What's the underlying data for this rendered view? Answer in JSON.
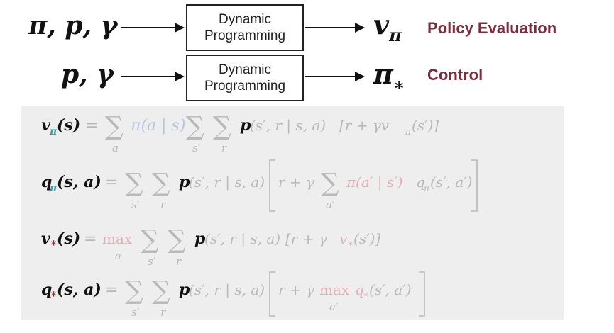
{
  "colors": {
    "label": "#7b2d3e",
    "box_border": "#222222",
    "panel_bg": "#eeeeee",
    "teal": "#3a9aa6",
    "crimson": "#9a2b3c",
    "faded": "#b9b9b9",
    "faded_blue": "#b8c6dc",
    "faded_red": "#e2b0b6",
    "strong": "#111111"
  },
  "row1": {
    "inputs": "π, p, γ",
    "box_line1": "Dynamic",
    "box_line2": "Programming",
    "output_main": "v",
    "output_sub": "π",
    "label": "Policy Evaluation"
  },
  "row2": {
    "inputs": "p, γ",
    "box_line1": "Dynamic",
    "box_line2": "Programming",
    "output_main": "π",
    "output_sub": "∗",
    "label": "Control"
  },
  "equations": {
    "eq1": {
      "lhs_v": "v",
      "lhs_sub": "π",
      "lhs_arg": "(s)",
      "equals": "=",
      "sum1": "∑",
      "sum1_sub": "a",
      "policy": "π(a | s)",
      "sum2": "∑",
      "sum2_sub": "s′",
      "sum3": "∑",
      "sum3_sub": "r",
      "p": "p",
      "p_args": "(s′, r | s, a)",
      "bracket_body": "[r + γv",
      "bracket_sub": "π",
      "bracket_tail": "(s′)]"
    },
    "eq2": {
      "lhs_q": "q",
      "lhs_sub": "π",
      "lhs_arg": "(s, a)",
      "equals": "=",
      "sum1": "∑",
      "sum1_sub": "s′",
      "sum2": "∑",
      "sum2_sub": "r",
      "p": "p",
      "p_args": "(s′, r | s, a)",
      "body_start": "r + γ",
      "sum3": "∑",
      "sum3_sub": "a′",
      "policy": "π(a′ | s′)",
      "q_tail": "q",
      "q_tail_sub": "π",
      "q_tail_args": "(s′, a′)"
    },
    "eq3": {
      "lhs_v": "v",
      "lhs_sub": "∗",
      "lhs_arg": "(s)",
      "equals": "=",
      "max": "max",
      "max_sub": "a",
      "sum1": "∑",
      "sum1_sub": "s′",
      "sum2": "∑",
      "sum2_sub": "r",
      "p": "p",
      "p_args": "(s′, r | s, a)",
      "bracket_body": "[r + γ",
      "v_tail": "v",
      "v_tail_sub": "∗",
      "bracket_tail": "(s′)]"
    },
    "eq4": {
      "lhs_q": "q",
      "lhs_sub": "∗",
      "lhs_arg": "(s, a)",
      "equals": "=",
      "sum1": "∑",
      "sum1_sub": "s′",
      "sum2": "∑",
      "sum2_sub": "r",
      "p": "p",
      "p_args": "(s′, r | s, a)",
      "body_start": "r + γ",
      "max": "max",
      "max_sub": "a′",
      "q_tail": "q",
      "q_tail_sub": "∗",
      "q_tail_args": "(s′, a′)"
    }
  }
}
